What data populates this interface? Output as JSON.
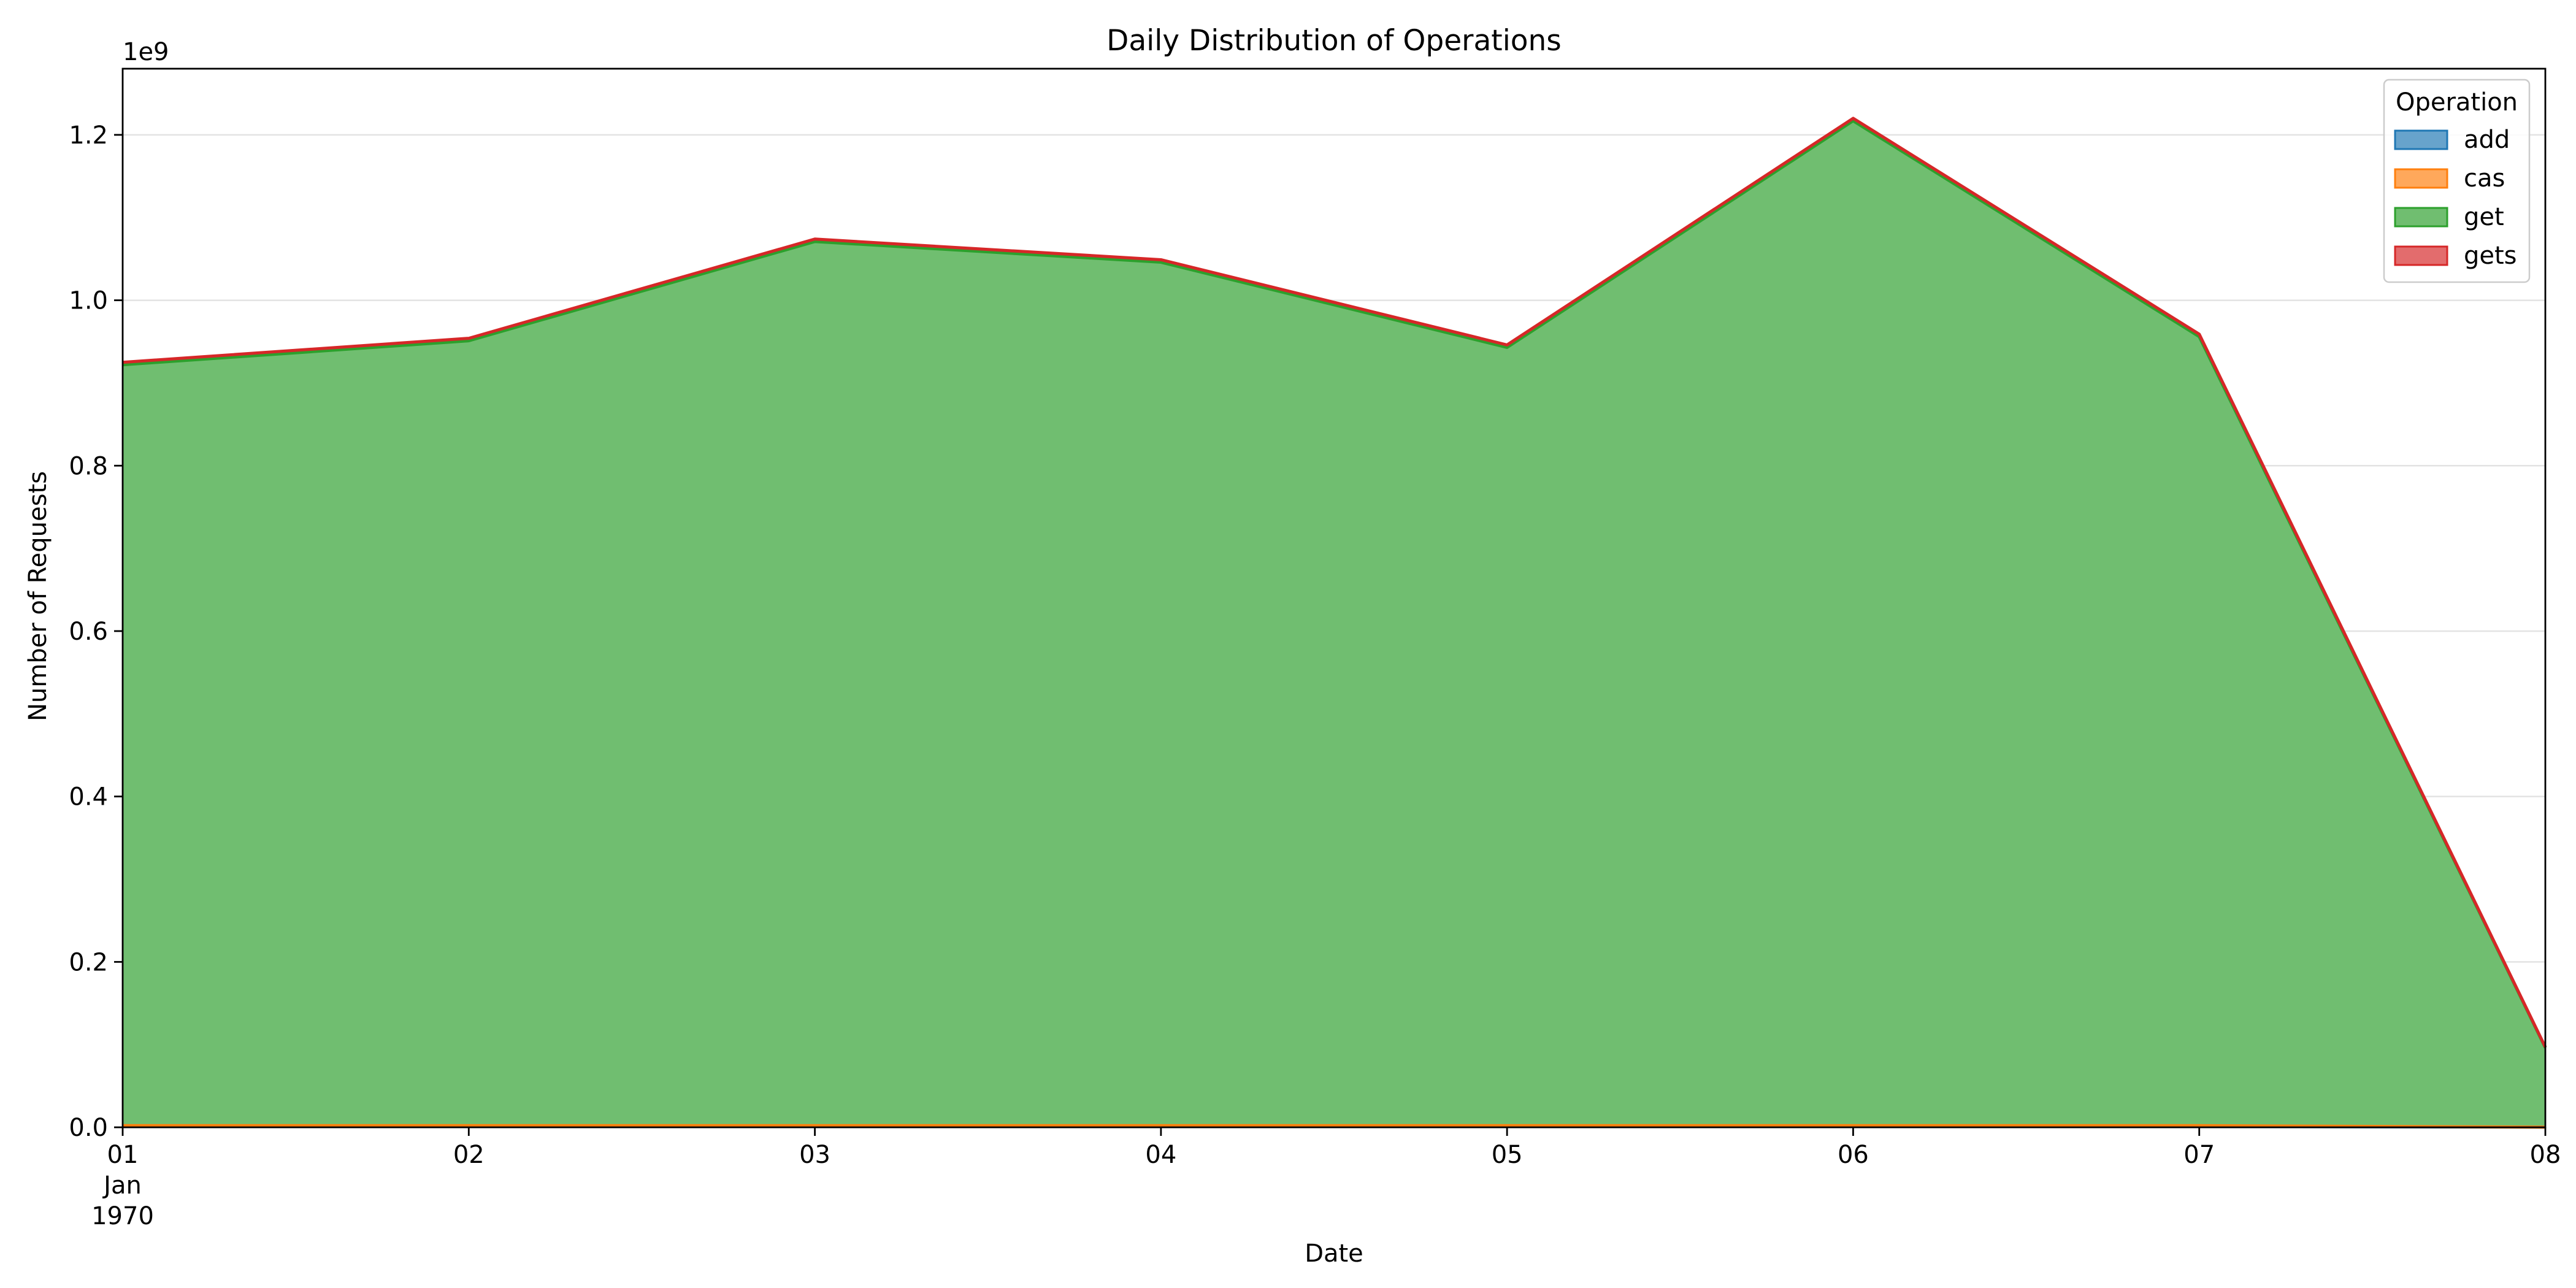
{
  "chart_data": {
    "type": "area",
    "stacked": true,
    "title": "Daily Distribution of Operations",
    "xlabel": "Date",
    "ylabel": "Number of Requests",
    "y_scale_label": "1e9",
    "x_dates": [
      "1970-01-01",
      "1970-01-02",
      "1970-01-03",
      "1970-01-04",
      "1970-01-05",
      "1970-01-06",
      "1970-01-07",
      "1970-01-08"
    ],
    "x_tick_labels": [
      "01",
      "02",
      "03",
      "04",
      "05",
      "06",
      "07",
      "08"
    ],
    "x_tick_sublabels": [
      "Jan",
      "1970"
    ],
    "ylim": [
      0,
      1.28
    ],
    "y_ticks": [
      "0.0",
      "0.2",
      "0.4",
      "0.6",
      "0.8",
      "1.0",
      "1.2"
    ],
    "y_units_multiplier": 1000000000,
    "grid": "horizontal",
    "legend": {
      "title": "Operation",
      "placement": "top-right"
    },
    "series": [
      {
        "name": "add",
        "color": "#1f77b4",
        "values": [
          0.001,
          0.001,
          0.001,
          0.001,
          0.001,
          0.001,
          0.001,
          0.0001
        ]
      },
      {
        "name": "cas",
        "color": "#ff7f0e",
        "values": [
          0.001,
          0.001,
          0.001,
          0.001,
          0.001,
          0.001,
          0.001,
          0.0001
        ]
      },
      {
        "name": "get",
        "color": "#2ca02c",
        "values": [
          0.92,
          0.949,
          1.069,
          1.044,
          0.941,
          1.215,
          0.954,
          0.096
        ]
      },
      {
        "name": "gets",
        "color": "#d62728",
        "values": [
          0.003,
          0.003,
          0.003,
          0.003,
          0.003,
          0.003,
          0.003,
          0.0008
        ]
      }
    ]
  }
}
